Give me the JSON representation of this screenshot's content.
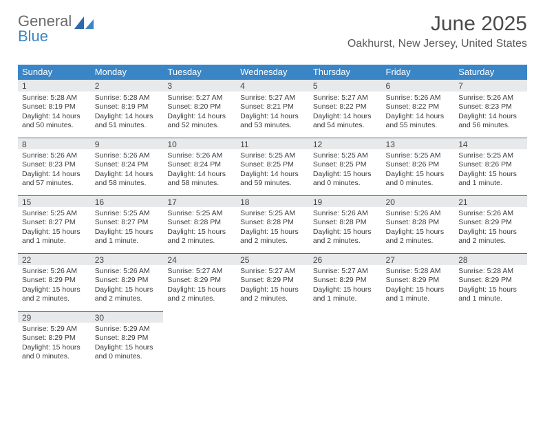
{
  "logo": {
    "word1": "General",
    "word2": "Blue"
  },
  "title": "June 2025",
  "subtitle": "Oakhurst, New Jersey, United States",
  "colors": {
    "header_bg": "#3a85c6",
    "header_text": "#ffffff",
    "daynum_bg": "#e7e9eb",
    "rule": "#3a6fa0",
    "body_text": "#3a3a3a",
    "title_text": "#4a4a4a",
    "logo_gray": "#6b6b6b",
    "logo_blue": "#3a85c6"
  },
  "weekdays": [
    "Sunday",
    "Monday",
    "Tuesday",
    "Wednesday",
    "Thursday",
    "Friday",
    "Saturday"
  ],
  "weeks": [
    [
      {
        "n": "1",
        "sunrise": "5:28 AM",
        "sunset": "8:19 PM",
        "daylight": "14 hours and 50 minutes."
      },
      {
        "n": "2",
        "sunrise": "5:28 AM",
        "sunset": "8:19 PM",
        "daylight": "14 hours and 51 minutes."
      },
      {
        "n": "3",
        "sunrise": "5:27 AM",
        "sunset": "8:20 PM",
        "daylight": "14 hours and 52 minutes."
      },
      {
        "n": "4",
        "sunrise": "5:27 AM",
        "sunset": "8:21 PM",
        "daylight": "14 hours and 53 minutes."
      },
      {
        "n": "5",
        "sunrise": "5:27 AM",
        "sunset": "8:22 PM",
        "daylight": "14 hours and 54 minutes."
      },
      {
        "n": "6",
        "sunrise": "5:26 AM",
        "sunset": "8:22 PM",
        "daylight": "14 hours and 55 minutes."
      },
      {
        "n": "7",
        "sunrise": "5:26 AM",
        "sunset": "8:23 PM",
        "daylight": "14 hours and 56 minutes."
      }
    ],
    [
      {
        "n": "8",
        "sunrise": "5:26 AM",
        "sunset": "8:23 PM",
        "daylight": "14 hours and 57 minutes."
      },
      {
        "n": "9",
        "sunrise": "5:26 AM",
        "sunset": "8:24 PM",
        "daylight": "14 hours and 58 minutes."
      },
      {
        "n": "10",
        "sunrise": "5:26 AM",
        "sunset": "8:24 PM",
        "daylight": "14 hours and 58 minutes."
      },
      {
        "n": "11",
        "sunrise": "5:25 AM",
        "sunset": "8:25 PM",
        "daylight": "14 hours and 59 minutes."
      },
      {
        "n": "12",
        "sunrise": "5:25 AM",
        "sunset": "8:25 PM",
        "daylight": "15 hours and 0 minutes."
      },
      {
        "n": "13",
        "sunrise": "5:25 AM",
        "sunset": "8:26 PM",
        "daylight": "15 hours and 0 minutes."
      },
      {
        "n": "14",
        "sunrise": "5:25 AM",
        "sunset": "8:26 PM",
        "daylight": "15 hours and 1 minute."
      }
    ],
    [
      {
        "n": "15",
        "sunrise": "5:25 AM",
        "sunset": "8:27 PM",
        "daylight": "15 hours and 1 minute."
      },
      {
        "n": "16",
        "sunrise": "5:25 AM",
        "sunset": "8:27 PM",
        "daylight": "15 hours and 1 minute."
      },
      {
        "n": "17",
        "sunrise": "5:25 AM",
        "sunset": "8:28 PM",
        "daylight": "15 hours and 2 minutes."
      },
      {
        "n": "18",
        "sunrise": "5:25 AM",
        "sunset": "8:28 PM",
        "daylight": "15 hours and 2 minutes."
      },
      {
        "n": "19",
        "sunrise": "5:26 AM",
        "sunset": "8:28 PM",
        "daylight": "15 hours and 2 minutes."
      },
      {
        "n": "20",
        "sunrise": "5:26 AM",
        "sunset": "8:28 PM",
        "daylight": "15 hours and 2 minutes."
      },
      {
        "n": "21",
        "sunrise": "5:26 AM",
        "sunset": "8:29 PM",
        "daylight": "15 hours and 2 minutes."
      }
    ],
    [
      {
        "n": "22",
        "sunrise": "5:26 AM",
        "sunset": "8:29 PM",
        "daylight": "15 hours and 2 minutes."
      },
      {
        "n": "23",
        "sunrise": "5:26 AM",
        "sunset": "8:29 PM",
        "daylight": "15 hours and 2 minutes."
      },
      {
        "n": "24",
        "sunrise": "5:27 AM",
        "sunset": "8:29 PM",
        "daylight": "15 hours and 2 minutes."
      },
      {
        "n": "25",
        "sunrise": "5:27 AM",
        "sunset": "8:29 PM",
        "daylight": "15 hours and 2 minutes."
      },
      {
        "n": "26",
        "sunrise": "5:27 AM",
        "sunset": "8:29 PM",
        "daylight": "15 hours and 1 minute."
      },
      {
        "n": "27",
        "sunrise": "5:28 AM",
        "sunset": "8:29 PM",
        "daylight": "15 hours and 1 minute."
      },
      {
        "n": "28",
        "sunrise": "5:28 AM",
        "sunset": "8:29 PM",
        "daylight": "15 hours and 1 minute."
      }
    ],
    [
      {
        "n": "29",
        "sunrise": "5:29 AM",
        "sunset": "8:29 PM",
        "daylight": "15 hours and 0 minutes."
      },
      {
        "n": "30",
        "sunrise": "5:29 AM",
        "sunset": "8:29 PM",
        "daylight": "15 hours and 0 minutes."
      },
      null,
      null,
      null,
      null,
      null
    ]
  ],
  "labels": {
    "sunrise": "Sunrise: ",
    "sunset": "Sunset: ",
    "daylight": "Daylight: "
  }
}
